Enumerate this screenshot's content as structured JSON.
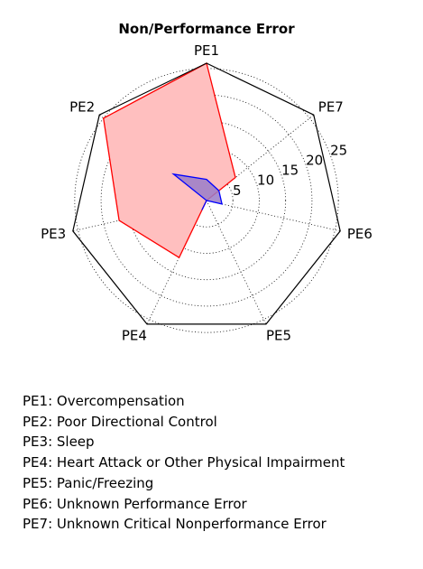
{
  "chart_data": {
    "type": "radar",
    "title": "Non/Performance Error",
    "axes": [
      "PE1",
      "PE7",
      "PE6",
      "PE5",
      "PE4",
      "PE3",
      "PE2"
    ],
    "radial_ticks": [
      "5",
      "10",
      "15",
      "20",
      "25"
    ],
    "radial_tick_values": [
      5,
      10,
      15,
      20,
      25
    ],
    "rmax": 26,
    "grid": true,
    "series": [
      {
        "color": "#ff0000",
        "fill": "#ffbfbf",
        "values": {
          "PE1": 26,
          "PE7": 7,
          "PE6": 0,
          "PE5": 0,
          "PE4": 12,
          "PE3": 17,
          "PE2": 25
        }
      },
      {
        "color": "#0000ff",
        "fill": "#9a7cc8",
        "values": {
          "PE1": 4,
          "PE7": 3,
          "PE6": 3,
          "PE5": 0,
          "PE4": 2,
          "PE3": 0,
          "PE2": 8
        }
      }
    ]
  },
  "legend_items": [
    "PE1: Overcompensation",
    "PE2: Poor Directional Control",
    "PE3: Sleep",
    "PE4: Heart Attack or Other Physical Impairment",
    "PE5: Panic/Freezing",
    "PE6: Unknown Performance Error",
    "PE7: Unknown Critical Nonperformance Error"
  ]
}
